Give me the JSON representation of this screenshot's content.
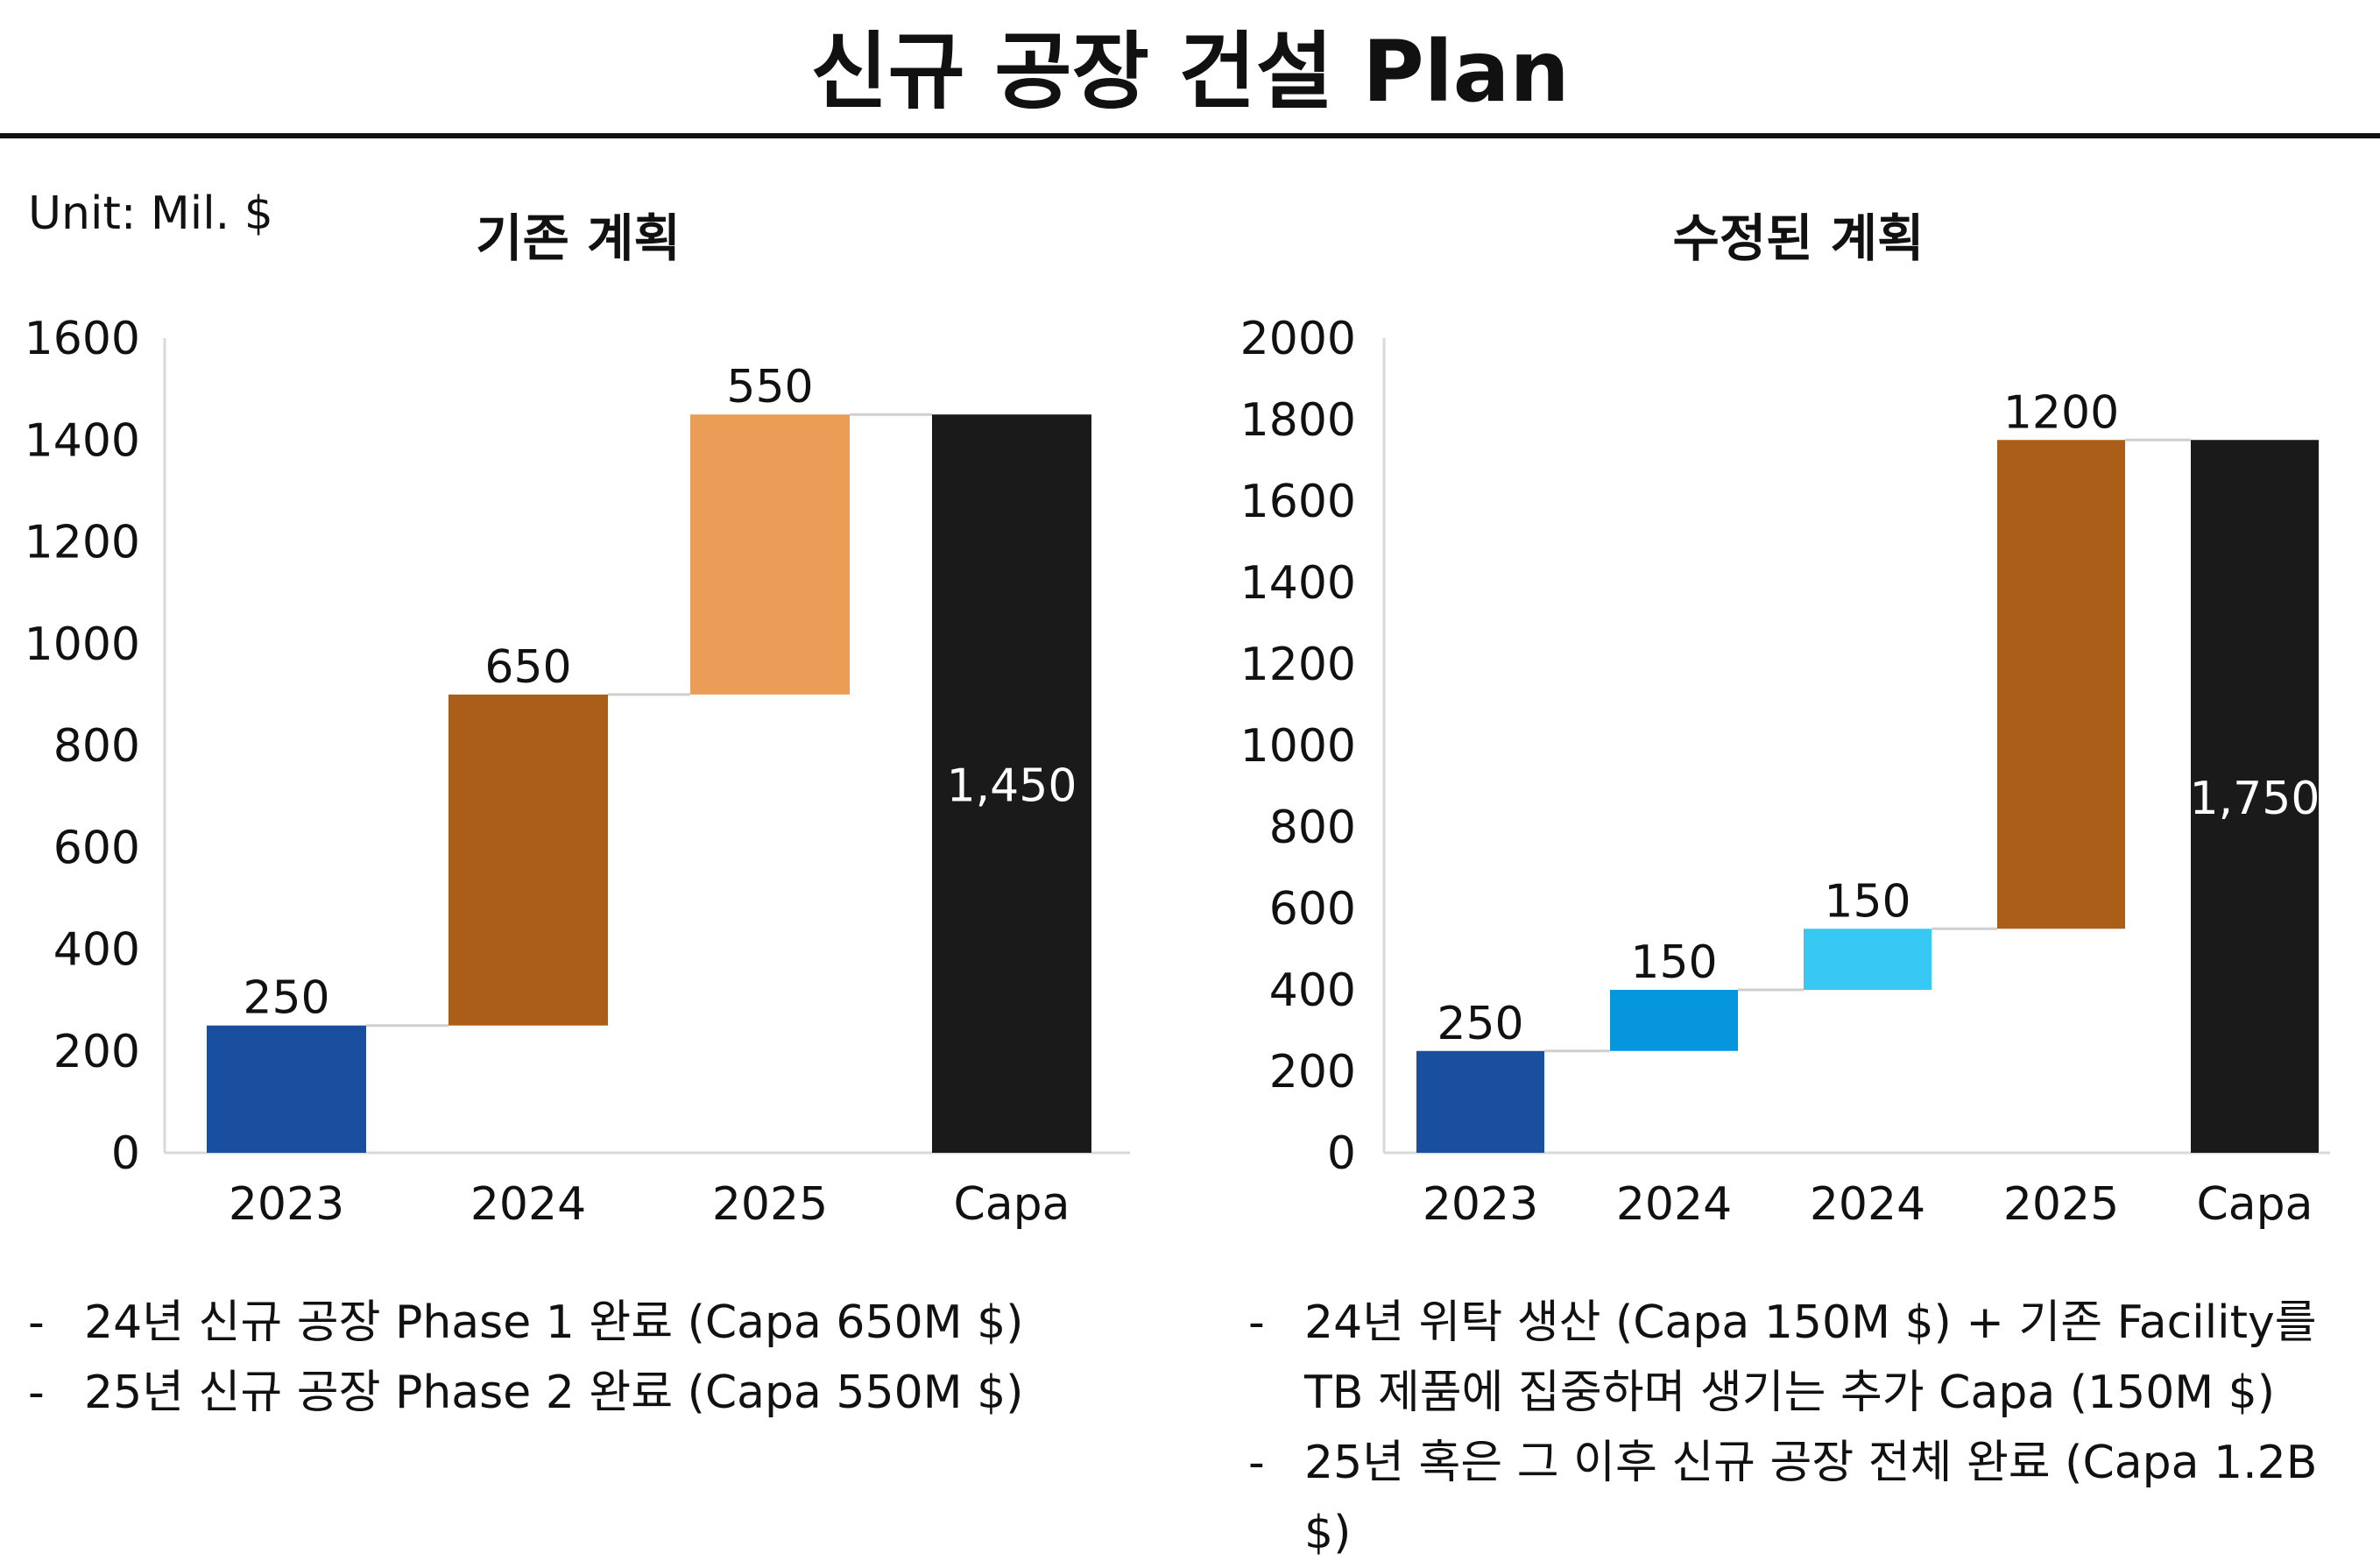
{
  "title": "신규 공장 건설 Plan",
  "unit_label": "Unit: Mil. $",
  "colors": {
    "dark_blue": "#1a4fa0",
    "brown": "#ab5e17",
    "light_orange": "#eb9c56",
    "black": "#1a1a1a",
    "medium_blue": "#0596de",
    "light_blue": "#38c8f4",
    "connector": "#cfcfcf",
    "axis": "#d9d9d9"
  },
  "chart_data": [
    {
      "type": "waterfall",
      "title": "기존 계획",
      "categories": [
        "2023",
        "2024",
        "2025",
        "Capa"
      ],
      "values": [
        250,
        650,
        550,
        1450
      ],
      "value_labels": [
        "250",
        "650",
        "550",
        "1,450"
      ],
      "is_total": [
        false,
        false,
        false,
        true
      ],
      "bar_colors": [
        "#1a4fa0",
        "#ab5e17",
        "#eb9c56",
        "#1a1a1a"
      ],
      "ylim": [
        0,
        1600
      ],
      "yticks": [
        0,
        200,
        400,
        600,
        800,
        1000,
        1200,
        1400,
        1600
      ],
      "xlabel": "",
      "ylabel": "",
      "grid": false,
      "legend": "none"
    },
    {
      "type": "waterfall",
      "title": "수정된 계획",
      "categories": [
        "2023",
        "2024",
        "2024",
        "2025",
        "Capa"
      ],
      "values": [
        250,
        150,
        150,
        1200,
        1750
      ],
      "value_labels": [
        "250",
        "150",
        "150",
        "1200",
        "1,750"
      ],
      "is_total": [
        false,
        false,
        false,
        false,
        true
      ],
      "bar_colors": [
        "#1a4fa0",
        "#0596de",
        "#38c8f4",
        "#ab5e17",
        "#1a1a1a"
      ],
      "ylim": [
        0,
        2000
      ],
      "yticks": [
        0,
        200,
        400,
        600,
        800,
        1000,
        1200,
        1400,
        1600,
        1800,
        2000
      ],
      "xlabel": "",
      "ylabel": "",
      "grid": false,
      "legend": "none"
    }
  ],
  "notes_left": [
    "24년 신규 공장 Phase 1 완료 (Capa 650M $)",
    "25년 신규 공장 Phase 2 완료 (Capa 550M $)"
  ],
  "notes_right": [
    "24년 위탁 생산 (Capa 150M $) + 기존 Facility를 TB 제품에 집중하며 생기는 추가 Capa (150M $)",
    "25년 혹은 그 이후 신규 공장 전체 완료 (Capa 1.2B $)"
  ]
}
